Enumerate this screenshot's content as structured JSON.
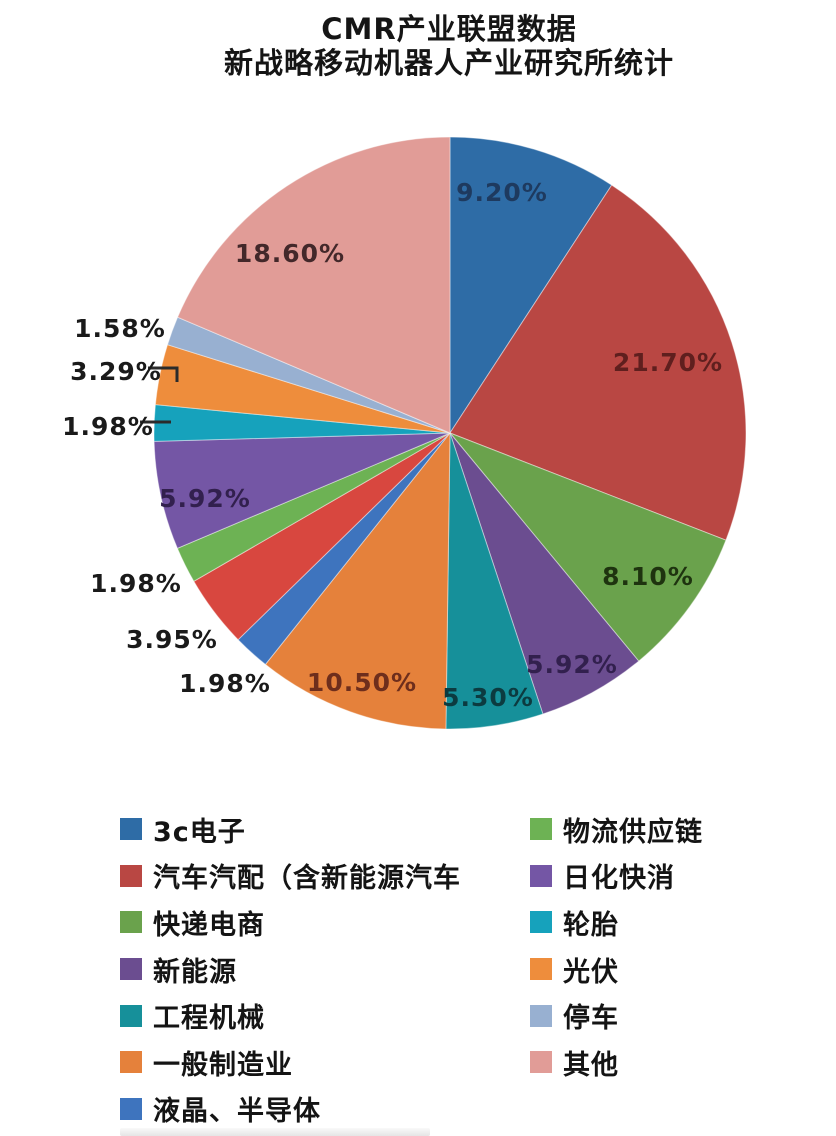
{
  "title": {
    "line1": "CMR产业联盟数据",
    "line2": "新战略移动机器人产业研究所统计"
  },
  "chart_data": {
    "type": "pie",
    "start": "12-oclock",
    "direction": "clockwise",
    "legend_position": "bottom-two-columns",
    "slices": [
      {
        "name": "3c电子",
        "value": 9.2,
        "percent_label": "9.20%",
        "color": "#2E6CA6",
        "label_color": "#1E3A5F",
        "label_inside": true
      },
      {
        "name": "汽车汽配（含新能源汽车",
        "value": 21.7,
        "percent_label": "21.70%",
        "color": "#B94743",
        "label_color": "#5F1F1E",
        "label_inside": true
      },
      {
        "name": "快递电商",
        "value": 8.1,
        "percent_label": "8.10%",
        "color": "#6AA24C",
        "label_color": "#1E330F",
        "label_inside": true
      },
      {
        "name": "新能源",
        "value": 5.92,
        "percent_label": "5.92%",
        "color": "#6B4D90",
        "label_color": "#32204E",
        "label_inside": true
      },
      {
        "name": "工程机械",
        "value": 5.3,
        "percent_label": "5.30%",
        "color": "#16909A",
        "label_color": "#0C3B40",
        "label_inside": true
      },
      {
        "name": "一般制造业",
        "value": 10.5,
        "percent_label": "10.50%",
        "color": "#E5813B",
        "label_color": "#6E2E1C",
        "label_inside": true
      },
      {
        "name": "液晶、半导体",
        "value": 1.98,
        "percent_label": "1.98%",
        "color": "#3E74BE",
        "label_color": "#1A1A1A",
        "label_inside": false
      },
      {
        "name": "",
        "value": 3.95,
        "percent_label": "3.95%",
        "color": "#D8473F",
        "label_color": "#1A1A1A",
        "label_inside": false
      },
      {
        "name": "物流供应链",
        "value": 1.98,
        "percent_label": "1.98%",
        "color": "#6DB254",
        "label_color": "#1A1A1A",
        "label_inside": false
      },
      {
        "name": "日化快消",
        "value": 5.92,
        "percent_label": "5.92%",
        "color": "#7456A5",
        "label_color": "#32204E",
        "label_inside": true
      },
      {
        "name": "轮胎",
        "value": 1.98,
        "percent_label": "1.98%",
        "color": "#16A2BC",
        "label_color": "#1A1A1A",
        "label_inside": false
      },
      {
        "name": "光伏",
        "value": 3.29,
        "percent_label": "3.29%",
        "color": "#EE8D3C",
        "label_color": "#1A1A1A",
        "label_inside": false
      },
      {
        "name": "停车",
        "value": 1.58,
        "percent_label": "1.58%",
        "color": "#98B0D1",
        "label_color": "#1A1A1A",
        "label_inside": false
      },
      {
        "name": "其他",
        "value": 18.6,
        "percent_label": "18.60%",
        "color": "#E19C97",
        "label_color": "#43282A",
        "label_inside": true
      }
    ],
    "legend": {
      "left_column": [
        0,
        1,
        2,
        3,
        4,
        5,
        6
      ],
      "right_column": [
        8,
        9,
        10,
        11,
        12,
        13
      ]
    }
  }
}
